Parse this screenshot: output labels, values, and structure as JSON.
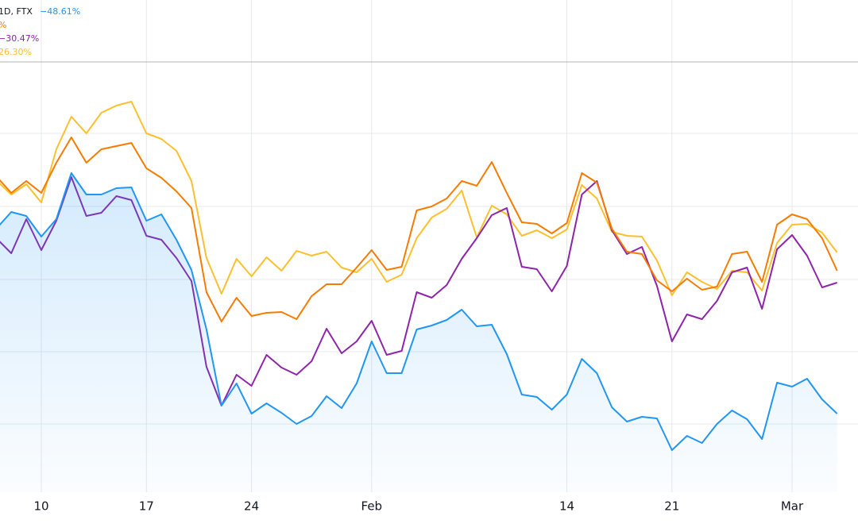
{
  "chart_data": {
    "type": "line",
    "legend_title": "1D, FTX",
    "categories": [
      null,
      null,
      null,
      "10",
      null,
      null,
      null,
      null,
      null,
      null,
      "17",
      null,
      null,
      null,
      null,
      null,
      null,
      "24",
      null,
      null,
      null,
      null,
      null,
      null,
      null,
      "Feb",
      null,
      null,
      null,
      null,
      null,
      null,
      null,
      null,
      null,
      null,
      null,
      null,
      "14",
      null,
      null,
      null,
      null,
      null,
      null,
      "21",
      null,
      null,
      null,
      null,
      null,
      null,
      null,
      "Mar",
      null,
      null,
      null
    ],
    "ylim": [
      0,
      620
    ],
    "grid": true,
    "series": [
      {
        "legend_label": "−48.61%",
        "color": "#2196f3",
        "area": true,
        "values": [
          332,
          353,
          348,
          322,
          344,
          402,
          375,
          375,
          383,
          384,
          342,
          350,
          318,
          280,
          205,
          109,
          137,
          99,
          112,
          100,
          86,
          96,
          121,
          106,
          137,
          190,
          150,
          150,
          205,
          210,
          217,
          230,
          209,
          211,
          174,
          123,
          120,
          104,
          123,
          168,
          150,
          107,
          89,
          95,
          93,
          53,
          71,
          62,
          86,
          103,
          92,
          67,
          138,
          133,
          143,
          117,
          99
        ]
      },
      {
        "legend_label": "%",
        "color": "#f57c00",
        "values": [
          398,
          377,
          392,
          377,
          415,
          447,
          415,
          432,
          436,
          440,
          408,
          396,
          379,
          358,
          252,
          215,
          245,
          222,
          226,
          227,
          218,
          247,
          262,
          262,
          283,
          305,
          280,
          284,
          355,
          360,
          370,
          392,
          386,
          416,
          377,
          340,
          338,
          326,
          339,
          402,
          390,
          332,
          303,
          300,
          267,
          253,
          269,
          255,
          259,
          300,
          303,
          265,
          337,
          350,
          344,
          320,
          279
        ]
      },
      {
        "legend_label": "−30.47%",
        "color": "#8e24aa",
        "values": [
          320,
          301,
          344,
          305,
          342,
          397,
          348,
          352,
          373,
          368,
          323,
          318,
          295,
          266,
          158,
          109,
          148,
          134,
          173,
          157,
          148,
          165,
          206,
          175,
          190,
          216,
          173,
          178,
          252,
          245,
          261,
          294,
          320,
          349,
          358,
          284,
          281,
          253,
          285,
          375,
          392,
          330,
          300,
          309,
          260,
          190,
          224,
          218,
          241,
          277,
          283,
          231,
          306,
          324,
          298,
          258,
          264
        ]
      },
      {
        "legend_label": "26.30%",
        "color": "#fbc02d",
        "values": [
          393,
          375,
          388,
          365,
          432,
          473,
          452,
          478,
          487,
          492,
          452,
          445,
          430,
          392,
          295,
          250,
          294,
          272,
          296,
          279,
          304,
          298,
          303,
          283,
          277,
          294,
          265,
          274,
          320,
          346,
          357,
          380,
          321,
          361,
          350,
          323,
          330,
          320,
          331,
          387,
          370,
          328,
          323,
          322,
          292,
          248,
          277,
          265,
          256,
          279,
          277,
          254,
          314,
          337,
          338,
          327,
          302
        ]
      }
    ]
  }
}
